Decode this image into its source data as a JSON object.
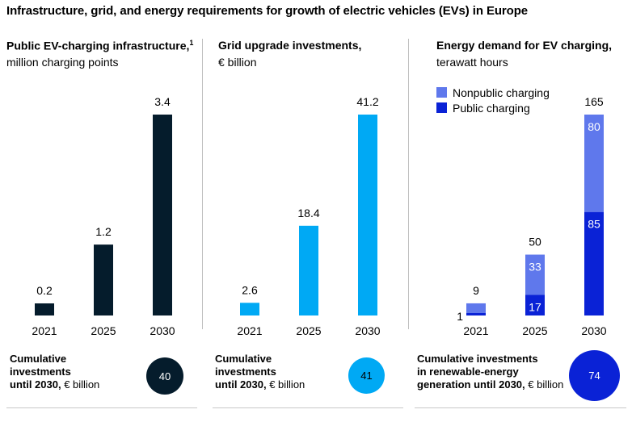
{
  "title": "Infrastructure, grid, and energy requirements for growth of electric vehicles (EVs) in Europe",
  "colors": {
    "dark": "#051c2c",
    "cyan": "#00a9f4",
    "nonpublic": "#5f78ec",
    "public": "#0a22d6"
  },
  "panels": [
    {
      "title": "Public EV-charging infrastructure,",
      "sup": "1",
      "subtitle": "million charging points",
      "foot_bold1": "Cumulative",
      "foot_bold2": "investments",
      "foot_bold3": "until 2030,",
      "foot_rest": " € billion",
      "circle_value": "40"
    },
    {
      "title": "Grid upgrade investments,",
      "subtitle": "€ billion",
      "foot_bold1": "Cumulative",
      "foot_bold2": "investments",
      "foot_bold3": "until 2030,",
      "foot_rest": " € billion",
      "circle_value": "41"
    },
    {
      "title": "Energy demand for EV charging,",
      "subtitle": "terawatt hours",
      "foot_bold1": "Cumulative investments",
      "foot_bold2": "in renewable-energy",
      "foot_bold3": "generation until 2030,",
      "foot_rest": " € billion",
      "circle_value": "74"
    }
  ],
  "chart_data": [
    {
      "type": "bar",
      "categories": [
        "2021",
        "2025",
        "2030"
      ],
      "values": [
        0.2,
        1.2,
        3.4
      ],
      "labels": [
        "0.2",
        "1.2",
        "3.4"
      ],
      "ylim": [
        0,
        3.4
      ]
    },
    {
      "type": "bar",
      "categories": [
        "2021",
        "2025",
        "2030"
      ],
      "values": [
        2.6,
        18.4,
        41.2
      ],
      "labels": [
        "2.6",
        "18.4",
        "41.2"
      ],
      "ylim": [
        0,
        41.2
      ]
    },
    {
      "type": "bar",
      "stacked": true,
      "categories": [
        "2021",
        "2025",
        "2030"
      ],
      "totals": [
        9,
        50,
        165
      ],
      "total_labels": [
        "9",
        "50",
        "165"
      ],
      "series": [
        {
          "name": "Public charging",
          "values": [
            1,
            17,
            85
          ],
          "labels": [
            "1",
            "17",
            "85"
          ]
        },
        {
          "name": "Nonpublic charging",
          "values": [
            8,
            33,
            80
          ],
          "labels": [
            "",
            "33",
            "80"
          ]
        }
      ],
      "legend": [
        "Nonpublic charging",
        "Public charging"
      ],
      "legend_position": "top-left",
      "ylim": [
        0,
        165
      ]
    }
  ]
}
